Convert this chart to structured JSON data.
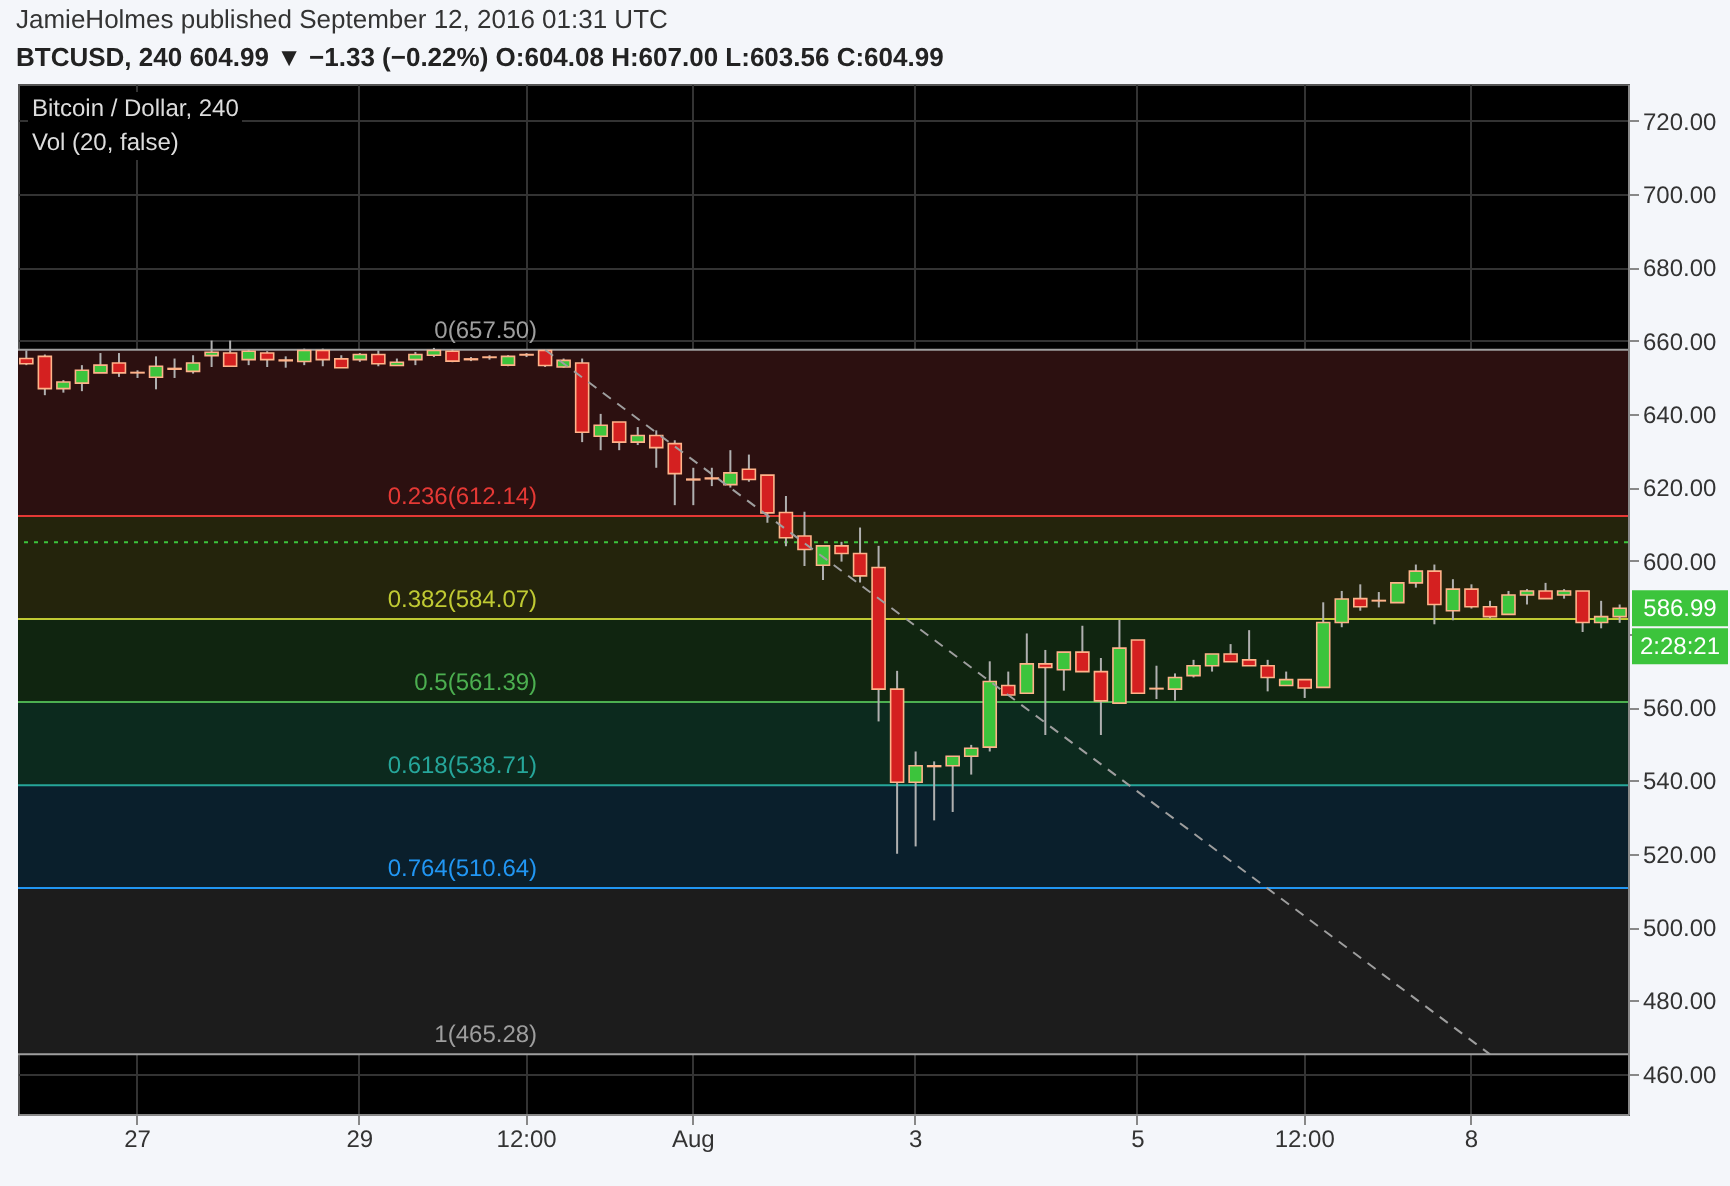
{
  "chart_data": {
    "type": "candlestick",
    "title": "Bitcoin / Dollar, 240",
    "annotations": [
      "JamieHolmes published September 12, 2016 01:31 UTC",
      "BTCUSD, 240  604.99 ▼ −1.33 (−0.22%)  O:604.08  H:607.00  L:603.56  C:604.99",
      "Vol (20, false)",
      "586.99",
      "2:28:21"
    ],
    "categories": [
      null,
      null,
      null,
      null,
      null,
      null,
      "27",
      null,
      null,
      null,
      null,
      null,
      null,
      null,
      null,
      null,
      null,
      null,
      "29",
      null,
      null,
      null,
      null,
      null,
      null,
      null,
      null,
      "12:00",
      null,
      null,
      null,
      null,
      null,
      null,
      null,
      null,
      "Aug",
      null,
      null,
      null,
      null,
      null,
      null,
      null,
      null,
      null,
      null,
      null,
      "3",
      null,
      null,
      null,
      null,
      null,
      null,
      null,
      null,
      null,
      null,
      null,
      "5",
      null,
      null,
      null,
      null,
      null,
      null,
      null,
      null,
      "12:00",
      null,
      null,
      null,
      null,
      null,
      null,
      null,
      null,
      "8",
      null,
      null,
      null,
      null,
      null,
      null,
      null,
      null
    ],
    "ohlc": [
      [
        655.1,
        657.3,
        653.3,
        653.7
      ],
      [
        655.7,
        656.2,
        645.1,
        646.9
      ],
      [
        646.9,
        649.2,
        645.8,
        648.7
      ],
      [
        648.4,
        653.3,
        646.2,
        651.9
      ],
      [
        651.2,
        656.6,
        651.2,
        653.3
      ],
      [
        653.9,
        656.6,
        650.1,
        651.2
      ],
      [
        651.3,
        651.9,
        649.8,
        651.2
      ],
      [
        650.0,
        655.7,
        646.7,
        653.0
      ],
      [
        652.2,
        655.1,
        649.8,
        652.4
      ],
      [
        651.6,
        656.0,
        651.0,
        653.9
      ],
      [
        655.9,
        660.0,
        652.8,
        656.8
      ],
      [
        656.6,
        660.0,
        653.0,
        653.0
      ],
      [
        654.8,
        657.5,
        653.3,
        657.1
      ],
      [
        656.6,
        657.1,
        652.8,
        654.8
      ],
      [
        654.5,
        655.7,
        652.6,
        654.7
      ],
      [
        654.3,
        657.8,
        653.3,
        657.3
      ],
      [
        657.3,
        657.8,
        653.0,
        654.8
      ],
      [
        655.0,
        656.0,
        652.6,
        652.6
      ],
      [
        654.8,
        656.6,
        654.2,
        656.2
      ],
      [
        656.2,
        657.3,
        653.0,
        653.7
      ],
      [
        653.2,
        655.1,
        653.2,
        654.1
      ],
      [
        654.8,
        656.9,
        653.3,
        656.2
      ],
      [
        656.0,
        658.0,
        655.5,
        657.3
      ],
      [
        657.1,
        657.6,
        654.1,
        654.4
      ],
      [
        655.0,
        655.5,
        654.4,
        654.8
      ],
      [
        655.5,
        656.0,
        654.8,
        655.4
      ],
      [
        653.3,
        656.0,
        653.0,
        655.7
      ],
      [
        656.2,
        656.6,
        655.5,
        656.1
      ],
      [
        657.3,
        657.5,
        652.8,
        653.2
      ],
      [
        652.8,
        655.1,
        652.6,
        654.6
      ],
      [
        653.9,
        655.1,
        632.3,
        635.0
      ],
      [
        633.9,
        640.0,
        630.1,
        636.9
      ],
      [
        637.8,
        637.8,
        630.1,
        632.3
      ],
      [
        632.3,
        636.4,
        631.5,
        634.1
      ],
      [
        634.1,
        635.5,
        625.3,
        630.8
      ],
      [
        631.9,
        632.8,
        615.1,
        623.7
      ],
      [
        622.2,
        625.3,
        615.1,
        622.0
      ],
      [
        622.3,
        625.3,
        620.3,
        622.5
      ],
      [
        620.7,
        630.1,
        619.9,
        623.9
      ],
      [
        624.9,
        628.9,
        621.5,
        622.1
      ],
      [
        623.3,
        623.3,
        610.3,
        613.0
      ],
      [
        613.1,
        617.6,
        603.9,
        606.2
      ],
      [
        606.7,
        613.3,
        598.5,
        603.0
      ],
      [
        598.7,
        604.0,
        594.7,
        604.0
      ],
      [
        604.0,
        605.1,
        599.7,
        601.9
      ],
      [
        601.9,
        609.0,
        594.0,
        595.8
      ],
      [
        598.1,
        604.0,
        556.1,
        564.9
      ],
      [
        564.9,
        569.9,
        520.0,
        539.5
      ],
      [
        539.5,
        547.9,
        522.0,
        544.0
      ],
      [
        544.0,
        545.2,
        529.1,
        543.8
      ],
      [
        544.0,
        546.6,
        531.4,
        546.6
      ],
      [
        546.6,
        549.7,
        541.6,
        548.8
      ],
      [
        549.1,
        572.5,
        547.9,
        567.0
      ],
      [
        565.9,
        569.7,
        563.3,
        563.3
      ],
      [
        563.8,
        580.1,
        563.8,
        571.8
      ],
      [
        571.8,
        575.6,
        552.4,
        570.8
      ],
      [
        570.2,
        575.0,
        564.5,
        575.0
      ],
      [
        575.0,
        582.2,
        569.7,
        569.7
      ],
      [
        569.7,
        573.4,
        552.4,
        561.7
      ],
      [
        561.1,
        583.8,
        561.1,
        576.1
      ],
      [
        578.3,
        578.3,
        563.8,
        563.8
      ],
      [
        565.1,
        571.3,
        562.2,
        565.0
      ],
      [
        564.9,
        569.2,
        561.8,
        568.1
      ],
      [
        568.6,
        572.9,
        568.1,
        571.3
      ],
      [
        571.3,
        574.5,
        569.7,
        574.5
      ],
      [
        574.5,
        577.2,
        572.4,
        572.4
      ],
      [
        572.9,
        581.0,
        571.3,
        571.3
      ],
      [
        571.3,
        572.9,
        564.3,
        568.1
      ],
      [
        565.9,
        569.7,
        565.9,
        567.5
      ],
      [
        567.5,
        567.5,
        562.5,
        565.2
      ],
      [
        565.4,
        588.6,
        565.4,
        583.1
      ],
      [
        583.1,
        591.7,
        581.8,
        589.5
      ],
      [
        589.6,
        593.5,
        586.3,
        587.4
      ],
      [
        589.1,
        591.4,
        587.2,
        589.0
      ],
      [
        588.5,
        593.9,
        588.5,
        593.9
      ],
      [
        593.9,
        598.9,
        592.6,
        597.1
      ],
      [
        597.1,
        598.9,
        582.6,
        588.0
      ],
      [
        586.3,
        594.9,
        583.7,
        592.2
      ],
      [
        592.2,
        593.5,
        586.9,
        587.4
      ],
      [
        587.4,
        589.0,
        584.2,
        584.7
      ],
      [
        585.3,
        591.7,
        585.3,
        590.6
      ],
      [
        590.6,
        592.2,
        588.0,
        591.7
      ],
      [
        591.7,
        593.9,
        589.6,
        589.6
      ],
      [
        590.6,
        592.2,
        589.6,
        591.7
      ],
      [
        591.7,
        591.7,
        580.5,
        583.1
      ],
      [
        583.1,
        589.0,
        581.5,
        584.7
      ],
      [
        584.7,
        588.0,
        583.0,
        586.99
      ]
    ],
    "colors": [
      "#d42020",
      "#d42020",
      "#3cc43c",
      "#3cc43c",
      "#3cc43c",
      "#d42020",
      "#d42020",
      "#3cc43c",
      "#3cc43c",
      "#3cc43c",
      "#3cc43c",
      "#d42020",
      "#3cc43c",
      "#d42020",
      "#3cc43c",
      "#3cc43c",
      "#d42020",
      "#d42020",
      "#3cc43c",
      "#d42020",
      "#3cc43c",
      "#3cc43c",
      "#3cc43c",
      "#d42020",
      "#d42020",
      "#d42020",
      "#3cc43c",
      "#d42020",
      "#d42020",
      "#3cc43c",
      "#d42020",
      "#3cc43c",
      "#d42020",
      "#3cc43c",
      "#d42020",
      "#d42020",
      "#d42020",
      "#3cc43c",
      "#3cc43c",
      "#d42020",
      "#d42020",
      "#d42020",
      "#d42020",
      "#3cc43c",
      "#d42020",
      "#d42020",
      "#d42020",
      "#d42020",
      "#3cc43c",
      "#d42020",
      "#3cc43c",
      "#3cc43c",
      "#3cc43c",
      "#d42020",
      "#3cc43c",
      "#d42020",
      "#3cc43c",
      "#d42020",
      "#d42020",
      "#3cc43c",
      "#d42020",
      "#d42020",
      "#3cc43c",
      "#3cc43c",
      "#3cc43c",
      "#d42020",
      "#d42020",
      "#d42020",
      "#3cc43c",
      "#d42020",
      "#3cc43c",
      "#3cc43c",
      "#d42020",
      "#d42020",
      "#3cc43c",
      "#3cc43c",
      "#d42020",
      "#3cc43c",
      "#d42020",
      "#d42020",
      "#3cc43c",
      "#3cc43c",
      "#d42020",
      "#3cc43c",
      "#d42020",
      "#3cc43c",
      "#3cc43c"
    ],
    "series": [
      {
        "type": "line",
        "color": "#9e9e9e",
        "line_style": "dashed",
        "values": [
          null,
          null,
          null,
          null,
          null,
          null,
          null,
          null,
          null,
          null,
          null,
          null,
          null,
          null,
          null,
          null,
          null,
          null,
          null,
          null,
          null,
          null,
          null,
          null,
          null,
          null,
          null,
          null,
          657.5,
          null,
          null,
          null,
          null,
          null,
          null,
          null,
          null,
          null,
          null,
          null,
          null,
          null,
          null,
          null,
          null,
          null,
          null,
          null,
          null,
          null,
          null,
          null,
          null,
          null,
          null,
          null,
          null,
          null,
          null,
          null,
          null,
          null,
          null,
          null,
          null,
          null,
          null,
          null,
          null,
          null,
          null,
          null,
          null,
          null,
          null,
          null,
          null,
          null,
          null,
          465.28,
          null,
          null,
          null,
          null,
          null,
          null,
          null
        ]
      }
    ],
    "ylim": [
      449,
      730
    ],
    "yticks": [
      {
        "value": 460,
        "label": "460.00"
      },
      {
        "value": 480,
        "label": "480.00"
      },
      {
        "value": 500,
        "label": "500.00"
      },
      {
        "value": 520,
        "label": "520.00"
      },
      {
        "value": 540,
        "label": "540.00"
      },
      {
        "value": 560,
        "label": "560.00"
      },
      {
        "value": 580,
        "label": null
      },
      {
        "value": 600,
        "label": "600.00"
      },
      {
        "value": 620,
        "label": "620.00"
      },
      {
        "value": 640,
        "label": "640.00"
      },
      {
        "value": 660,
        "label": "660.00"
      },
      {
        "value": 680,
        "label": "680.00"
      },
      {
        "value": 700,
        "label": "700.00"
      },
      {
        "value": 720,
        "label": "720.00"
      }
    ],
    "grid": true,
    "ref_lines": [
      {
        "axis": "y",
        "value": 657.5,
        "label": "0(657.50)",
        "color": "#9e9e9e"
      },
      {
        "axis": "y",
        "value": 612.14,
        "label": "0.236(612.14)",
        "color": "#e53935"
      },
      {
        "axis": "y",
        "value": 584.07,
        "label": "0.382(584.07)",
        "color": "#c0ca33"
      },
      {
        "axis": "y",
        "value": 561.39,
        "label": "0.5(561.39)",
        "color": "#4caf50"
      },
      {
        "axis": "y",
        "value": 538.71,
        "label": "0.618(538.71)",
        "color": "#26a69a"
      },
      {
        "axis": "y",
        "value": 510.64,
        "label": "0.764(510.64)",
        "color": "#2196f3"
      },
      {
        "axis": "y",
        "value": 465.28,
        "label": "1(465.28)",
        "color": "#9e9e9e"
      },
      {
        "axis": "y",
        "value": 604.99,
        "color": "#3cc43c",
        "line_style": "dotted"
      }
    ],
    "bands": [
      {
        "axis": "y",
        "from": 612.14,
        "to": 657.5,
        "color": "#2c1010"
      },
      {
        "axis": "y",
        "from": 584.07,
        "to": 612.14,
        "color": "#24240c"
      },
      {
        "axis": "y",
        "from": 561.39,
        "to": 584.07,
        "color": "#102510"
      },
      {
        "axis": "y",
        "from": 538.71,
        "to": 561.39,
        "color": "#0c2a1e"
      },
      {
        "axis": "y",
        "from": 510.64,
        "to": 538.71,
        "color": "#0a1f2c"
      },
      {
        "axis": "y",
        "from": 465.28,
        "to": 510.64,
        "color": "#1c1c1c"
      }
    ]
  }
}
